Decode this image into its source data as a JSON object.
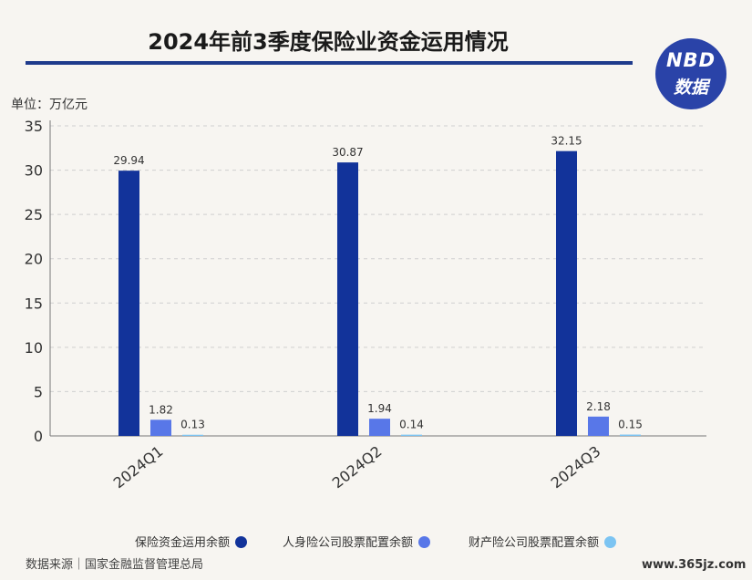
{
  "header": {
    "title": "2024年前3季度保险业资金运用情况",
    "logo_line1": "NBD",
    "logo_line2": "数据"
  },
  "unit_label": "单位：万亿元",
  "chart_data": {
    "type": "bar",
    "categories": [
      "2024Q1",
      "2024Q2",
      "2024Q3"
    ],
    "series": [
      {
        "name": "保险资金运用余额",
        "values": [
          29.94,
          30.87,
          32.15
        ],
        "color": "#12339a"
      },
      {
        "name": "人身险公司股票配置余额",
        "values": [
          1.82,
          1.94,
          2.18
        ],
        "color": "#5877e8"
      },
      {
        "name": "财产险公司股票配置余额",
        "values": [
          0.13,
          0.14,
          0.15
        ],
        "color": "#7cc4f2"
      }
    ],
    "yticks": [
      "0",
      "5",
      "10",
      "15",
      "20",
      "25",
      "30",
      "35"
    ],
    "ylim": [
      0,
      35
    ],
    "grid": true,
    "legend_position": "bottom",
    "xlabel": "",
    "ylabel": ""
  },
  "footer": {
    "source": "数据来源｜国家金融监督管理总局",
    "site": "www.365jz.com"
  }
}
